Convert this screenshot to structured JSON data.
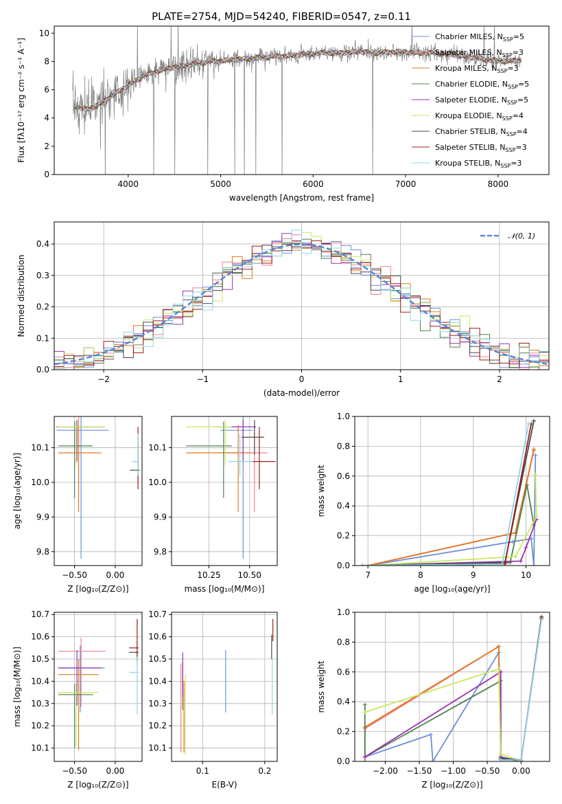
{
  "title": "PLATE=2754, MJD=54240, FIBERID=0547, z=0.11",
  "colors": {
    "Chabrier MILES": "#6b8fd8",
    "Salpeter MILES": "#ee7f8f",
    "Kroupa MILES": "#e2781f",
    "Chabrier ELODIE": "#4f7f4f",
    "Salpeter ELODIE": "#9932b0",
    "Kroupa ELODIE": "#c8e860",
    "Chabrier STELIB": "#4a4a4a",
    "Salpeter STELIB": "#9b1b1b",
    "Kroupa STELIB": "#8ad8e6"
  },
  "chart_data": [
    {
      "id": "spectrum",
      "type": "line",
      "title": "PLATE=2754, MJD=54240, FIBERID=0547, z=0.11",
      "xlabel": "wavelength [Angstrom, rest frame]",
      "ylabel": "Flux [fλ10⁻¹⁷ erg cm⁻² s⁻¹ A⁻¹]",
      "xlim": [
        3200,
        8550
      ],
      "ylim": [
        0,
        10.5
      ],
      "xticks": [
        4000,
        5000,
        6000,
        7000,
        8000
      ],
      "yticks": [
        0,
        2,
        4,
        6,
        8,
        10
      ],
      "legend_position": "right",
      "legend": [
        {
          "label": "Chabrier MILES, N",
          "sub": "SSP",
          "suffix": "=5",
          "model": "Chabrier MILES"
        },
        {
          "label": "Salpeter MILES, N",
          "sub": "SSP",
          "suffix": "=3",
          "model": "Salpeter MILES"
        },
        {
          "label": "Kroupa MILES, N",
          "sub": "SSP",
          "suffix": "=3",
          "model": "Kroupa MILES"
        },
        {
          "label": "Chabrier ELODIE, N",
          "sub": "SSP",
          "suffix": "=5",
          "model": "Chabrier ELODIE"
        },
        {
          "label": "Salpeter ELODIE, N",
          "sub": "SSP",
          "suffix": "=5",
          "model": "Salpeter ELODIE"
        },
        {
          "label": "Kroupa ELODIE, N",
          "sub": "SSP",
          "suffix": "=4",
          "model": "Kroupa ELODIE"
        },
        {
          "label": "Chabrier STELIB, N",
          "sub": "SSP",
          "suffix": "=4",
          "model": "Chabrier STELIB"
        },
        {
          "label": "Salpeter STELIB, N",
          "sub": "SSP",
          "suffix": "=3",
          "model": "Salpeter STELIB"
        },
        {
          "label": "Kroupa STELIB, N",
          "sub": "SSP",
          "suffix": "=3",
          "model": "Kroupa STELIB"
        }
      ],
      "continuum_x": [
        3400,
        3550,
        3700,
        3850,
        4000,
        4150,
        4300,
        4500,
        4700,
        4900,
        5100,
        5300,
        5500,
        5700,
        5900,
        6100,
        6300,
        6500,
        6700,
        6900,
        7100,
        7300,
        7500,
        7700,
        7900,
        8100,
        8250
      ],
      "continuum_y": [
        4.9,
        4.6,
        5.0,
        5.7,
        6.3,
        6.9,
        7.3,
        7.6,
        7.8,
        8.0,
        8.1,
        8.2,
        8.3,
        8.4,
        8.5,
        8.6,
        8.6,
        8.7,
        8.6,
        8.7,
        8.6,
        8.6,
        8.5,
        8.3,
        8.1,
        8.0,
        8.1
      ]
    },
    {
      "id": "residuals",
      "type": "histogram",
      "xlabel": "(data-model)/error",
      "ylabel": "Normed distribution",
      "xlim": [
        -2.5,
        2.5
      ],
      "ylim": [
        0,
        0.47
      ],
      "xticks": [
        -2,
        -1,
        0,
        1,
        2
      ],
      "yticks": [
        0.0,
        0.1,
        0.2,
        0.3,
        0.4
      ],
      "reference_label": "𝒩(0, 1)",
      "reference_color": "#5a86d6",
      "bin_width": 0.1,
      "legend_position": "top-right"
    },
    {
      "id": "age-vs-Z",
      "type": "errorbar",
      "xlabel": "Z [log₁₀(Z/Z⊙)]",
      "ylabel": "age  [log₁₀(age/yr)]",
      "xlim": [
        -0.75,
        0.33
      ],
      "ylim": [
        9.76,
        10.19
      ],
      "xticks": [
        -0.5,
        0.0
      ],
      "yticks": [
        9.8,
        9.9,
        10.0,
        10.1
      ],
      "points": [
        {
          "model": "Chabrier MILES",
          "x": -0.42,
          "xerr": [
            0.3,
            0.34
          ],
          "y": 10.15,
          "yerr": [
            0.37,
            0.04
          ]
        },
        {
          "model": "Salpeter MILES",
          "x": -0.45,
          "xerr": [
            0.28,
            0.32
          ],
          "y": 10.16,
          "yerr": [
            0.19,
            0.03
          ]
        },
        {
          "model": "Kroupa MILES",
          "x": -0.45,
          "xerr": [
            0.25,
            0.28
          ],
          "y": 10.085,
          "yerr": [
            0.17,
            0.08
          ]
        },
        {
          "model": "Chabrier ELODIE",
          "x": -0.5,
          "xerr": [
            0.2,
            0.22
          ],
          "y": 10.105,
          "yerr": [
            0.15,
            0.07
          ]
        },
        {
          "model": "Salpeter ELODIE",
          "x": -0.47,
          "xerr": [
            0.23,
            0.3
          ],
          "y": 10.16,
          "yerr": [
            0.1,
            0.02
          ]
        },
        {
          "model": "Kroupa ELODIE",
          "x": -0.48,
          "xerr": [
            0.22,
            0.33
          ],
          "y": 10.16,
          "yerr": [
            0.11,
            0.02
          ]
        },
        {
          "model": "Chabrier STELIB",
          "x": 0.28,
          "xerr": [
            0.1,
            0.02
          ],
          "y": 10.035,
          "yerr": [
            0.03,
            0.08
          ]
        },
        {
          "model": "Salpeter STELIB",
          "x": 0.28,
          "xerr": [
            0.05,
            0.01
          ],
          "y": 10.06,
          "yerr": [
            0.08,
            0.1
          ]
        },
        {
          "model": "Kroupa STELIB",
          "x": 0.28,
          "xerr": [
            0.07,
            0.01
          ],
          "y": 10.06,
          "yerr": [
            0.04,
            0.08
          ]
        }
      ]
    },
    {
      "id": "age-vs-mass",
      "type": "errorbar",
      "xlabel": "mass [log₁₀(M/M⊙)]",
      "ylabel": "",
      "xlim": [
        10.02,
        10.67
      ],
      "ylim": [
        9.76,
        10.19
      ],
      "xticks": [
        10.25,
        10.5
      ],
      "yticks": [
        9.8,
        9.9,
        10.0,
        10.1
      ],
      "points": [
        {
          "model": "Chabrier MILES",
          "x": 10.46,
          "xerr": [
            0.14,
            0.06
          ],
          "y": 10.15,
          "yerr": [
            0.37,
            0.04
          ]
        },
        {
          "model": "Salpeter MILES",
          "x": 10.53,
          "xerr": [
            0.22,
            0.08
          ],
          "y": 10.085,
          "yerr": [
            0.17,
            0.08
          ]
        },
        {
          "model": "Kroupa MILES",
          "x": 10.43,
          "xerr": [
            0.32,
            0.08
          ],
          "y": 10.085,
          "yerr": [
            0.17,
            0.08
          ]
        },
        {
          "model": "Chabrier ELODIE",
          "x": 10.34,
          "xerr": [
            0.23,
            0.05
          ],
          "y": 10.105,
          "yerr": [
            0.15,
            0.07
          ]
        },
        {
          "model": "Salpeter ELODIE",
          "x": 10.46,
          "xerr": [
            0.17,
            0.08
          ],
          "y": 10.16,
          "yerr": [
            0.1,
            0.02
          ]
        },
        {
          "model": "Kroupa ELODIE",
          "x": 10.35,
          "xerr": [
            0.24,
            0.04
          ],
          "y": 10.16,
          "yerr": [
            0.11,
            0.02
          ]
        },
        {
          "model": "Chabrier STELIB",
          "x": 10.53,
          "xerr": [
            0.08,
            0.06
          ],
          "y": 10.13,
          "yerr": [
            0.05,
            0.05
          ]
        },
        {
          "model": "Salpeter STELIB",
          "x": 10.56,
          "xerr": [
            0.06,
            0.1
          ],
          "y": 10.06,
          "yerr": [
            0.08,
            0.1
          ]
        },
        {
          "model": "Kroupa STELIB",
          "x": 10.44,
          "xerr": [
            0.07,
            0.08
          ],
          "y": 10.06,
          "yerr": [
            0.04,
            0.08
          ]
        }
      ]
    },
    {
      "id": "mass-weight-vs-age",
      "type": "line",
      "xlabel": "age  [log₁₀(age/yr)]",
      "ylabel": "mass weight",
      "xlim": [
        6.75,
        10.45
      ],
      "ylim": [
        0,
        1
      ],
      "xticks": [
        7,
        8,
        9,
        10
      ],
      "yticks": [
        0.0,
        0.2,
        0.4,
        0.6,
        0.8,
        1.0
      ],
      "series": [
        {
          "model": "Chabrier MILES",
          "x": [
            7.0,
            9.75,
            10.1,
            10.15,
            10.18
          ],
          "y": [
            0.0,
            0.16,
            0.18,
            0.0,
            0.74
          ]
        },
        {
          "model": "Salpeter MILES",
          "x": [
            7.0,
            9.8,
            10.15
          ],
          "y": [
            0.0,
            0.22,
            0.77
          ]
        },
        {
          "model": "Kroupa MILES",
          "x": [
            7.0,
            9.8,
            10.15
          ],
          "y": [
            0.0,
            0.22,
            0.78
          ]
        },
        {
          "model": "Chabrier ELODIE",
          "x": [
            6.9,
            9.7,
            10.02,
            10.15
          ],
          "y": [
            0.0,
            0.02,
            0.54,
            0.27
          ]
        },
        {
          "model": "Salpeter ELODIE",
          "x": [
            6.9,
            9.9,
            10.0,
            10.2
          ],
          "y": [
            0.0,
            0.03,
            0.12,
            0.31
          ]
        },
        {
          "model": "Kroupa ELODIE",
          "x": [
            7.0,
            9.8,
            10.2,
            10.18
          ],
          "y": [
            0.0,
            0.06,
            0.33,
            0.61
          ]
        },
        {
          "model": "Chabrier STELIB",
          "x": [
            6.9,
            9.6,
            10.15
          ],
          "y": [
            0.0,
            0.02,
            0.97
          ]
        },
        {
          "model": "Salpeter STELIB",
          "x": [
            6.9,
            9.6,
            10.1
          ],
          "y": [
            0.0,
            0.01,
            0.95
          ]
        },
        {
          "model": "Kroupa STELIB",
          "x": [
            6.9,
            9.55,
            10.05
          ],
          "y": [
            0.0,
            0.01,
            0.95
          ]
        }
      ]
    },
    {
      "id": "mass-vs-Z",
      "type": "errorbar",
      "xlabel": "Z [log₁₀(Z/Z⊙)]",
      "ylabel": "mass [log₁₀(M/M⊙)]",
      "xlim": [
        -0.75,
        0.33
      ],
      "ylim": [
        10.04,
        10.71
      ],
      "xticks": [
        -0.5,
        0.0
      ],
      "yticks": [
        10.1,
        10.2,
        10.3,
        10.4,
        10.5,
        10.6,
        10.7
      ],
      "points": [
        {
          "model": "Chabrier MILES",
          "x": -0.43,
          "xerr": [
            0.27,
            0.3
          ],
          "y": 10.46,
          "yerr": [
            0.2,
            0.1
          ]
        },
        {
          "model": "Salpeter MILES",
          "x": -0.42,
          "xerr": [
            0.28,
            0.3
          ],
          "y": 10.535,
          "yerr": [
            0.25,
            0.06
          ]
        },
        {
          "model": "Kroupa MILES",
          "x": -0.45,
          "xerr": [
            0.25,
            0.25
          ],
          "y": 10.43,
          "yerr": [
            0.34,
            0.07
          ]
        },
        {
          "model": "Chabrier ELODIE",
          "x": -0.5,
          "xerr": [
            0.2,
            0.23
          ],
          "y": 10.34,
          "yerr": [
            0.24,
            0.05
          ]
        },
        {
          "model": "Salpeter ELODIE",
          "x": -0.47,
          "xerr": [
            0.23,
            0.3
          ],
          "y": 10.46,
          "yerr": [
            0.17,
            0.08
          ]
        },
        {
          "model": "Kroupa ELODIE",
          "x": -0.48,
          "xerr": [
            0.22,
            0.27
          ],
          "y": 10.35,
          "yerr": [
            0.24,
            0.04
          ]
        },
        {
          "model": "Chabrier STELIB",
          "x": 0.27,
          "xerr": [
            0.1,
            0.02
          ],
          "y": 10.53,
          "yerr": [
            0.06,
            0.05
          ]
        },
        {
          "model": "Salpeter STELIB",
          "x": 0.27,
          "xerr": [
            0.1,
            0.02
          ],
          "y": 10.55,
          "yerr": [
            0.06,
            0.13
          ]
        },
        {
          "model": "Kroupa STELIB",
          "x": 0.27,
          "xerr": [
            0.1,
            0.02
          ],
          "y": 10.44,
          "yerr": [
            0.19,
            0.07
          ]
        }
      ]
    },
    {
      "id": "mass-vs-EBV",
      "type": "errorbar",
      "xlabel": "E(B-V)",
      "ylabel": "",
      "xlim": [
        0.05,
        0.22
      ],
      "ylim": [
        10.04,
        10.71
      ],
      "xticks": [
        0.1,
        0.2
      ],
      "yticks": [
        10.1,
        10.2,
        10.3,
        10.4,
        10.5,
        10.6,
        10.7
      ],
      "points": [
        {
          "model": "Chabrier MILES",
          "x": 0.137,
          "xerr": [
            0,
            0
          ],
          "y": 10.4,
          "yerr": [
            0.14,
            0.14
          ]
        },
        {
          "model": "Salpeter MILES",
          "x": 0.065,
          "xerr": [
            0,
            0
          ],
          "y": 10.28,
          "yerr": [
            0.2,
            0.2
          ]
        },
        {
          "model": "Kroupa MILES",
          "x": 0.07,
          "xerr": [
            0,
            0
          ],
          "y": 10.26,
          "yerr": [
            0.18,
            0.14
          ]
        },
        {
          "model": "Chabrier ELODIE",
          "x": 0.068,
          "xerr": [
            0,
            0
          ],
          "y": 10.38,
          "yerr": [
            0.11,
            0.11
          ]
        },
        {
          "model": "Salpeter ELODIE",
          "x": 0.068,
          "xerr": [
            0,
            0
          ],
          "y": 10.43,
          "yerr": [
            0.1,
            0.1
          ]
        },
        {
          "model": "Kroupa ELODIE",
          "x": 0.072,
          "xerr": [
            0,
            0
          ],
          "y": 10.27,
          "yerr": [
            0.2,
            0.16
          ]
        },
        {
          "model": "Chabrier STELIB",
          "x": 0.211,
          "xerr": [
            0,
            0
          ],
          "y": 10.55,
          "yerr": [
            0.05,
            0.06
          ]
        },
        {
          "model": "Salpeter STELIB",
          "x": 0.213,
          "xerr": [
            0,
            0
          ],
          "y": 10.63,
          "yerr": [
            0.05,
            0.05
          ]
        },
        {
          "model": "Kroupa STELIB",
          "x": 0.212,
          "xerr": [
            0,
            0
          ],
          "y": 10.43,
          "yerr": [
            0.18,
            0.07
          ]
        }
      ]
    },
    {
      "id": "mass-weight-vs-Z",
      "type": "line",
      "xlabel": "Z [log₁₀(Z/Z⊙)]",
      "ylabel": "mass weight",
      "xlim": [
        -2.45,
        0.42
      ],
      "ylim": [
        0,
        1
      ],
      "xticks": [
        -2.0,
        -1.5,
        -1.0,
        -0.5,
        0.0
      ],
      "yticks": [
        0.0,
        0.2,
        0.4,
        0.6,
        0.8,
        1.0
      ],
      "series": [
        {
          "model": "Chabrier MILES",
          "x": [
            -2.3,
            -1.33,
            -1.3,
            -0.33,
            -0.3,
            0.0
          ],
          "y": [
            0.03,
            0.18,
            0.0,
            0.73,
            0.02,
            0.0
          ]
        },
        {
          "model": "Salpeter MILES",
          "x": [
            -2.3,
            -0.33,
            -0.3,
            0.0
          ],
          "y": [
            0.22,
            0.77,
            0.02,
            0.01
          ]
        },
        {
          "model": "Kroupa MILES",
          "x": [
            -2.3,
            -2.3,
            -0.33,
            -0.3,
            0.0
          ],
          "y": [
            0.0,
            0.23,
            0.77,
            0.02,
            0.0
          ]
        },
        {
          "model": "Chabrier ELODIE",
          "x": [
            -2.3,
            -2.3,
            -0.3,
            -0.3,
            0.0
          ],
          "y": [
            0.38,
            0.03,
            0.54,
            0.03,
            0.0
          ]
        },
        {
          "model": "Salpeter ELODIE",
          "x": [
            -2.3,
            -0.3,
            -0.3,
            0.0
          ],
          "y": [
            0.03,
            0.6,
            0.03,
            0.0
          ]
        },
        {
          "model": "Kroupa ELODIE",
          "x": [
            -2.3,
            -0.33,
            -0.3,
            0.0
          ],
          "y": [
            0.33,
            0.62,
            0.05,
            0.0
          ]
        },
        {
          "model": "Chabrier STELIB",
          "x": [
            -0.3,
            0.0,
            0.3
          ],
          "y": [
            0.02,
            0.01,
            0.97
          ]
        },
        {
          "model": "Salpeter STELIB",
          "x": [
            -0.3,
            0.0,
            0.3
          ],
          "y": [
            0.01,
            0.01,
            0.96
          ]
        },
        {
          "model": "Kroupa STELIB",
          "x": [
            -0.3,
            0.0,
            0.3
          ],
          "y": [
            0.01,
            0.01,
            0.95
          ]
        }
      ]
    }
  ]
}
